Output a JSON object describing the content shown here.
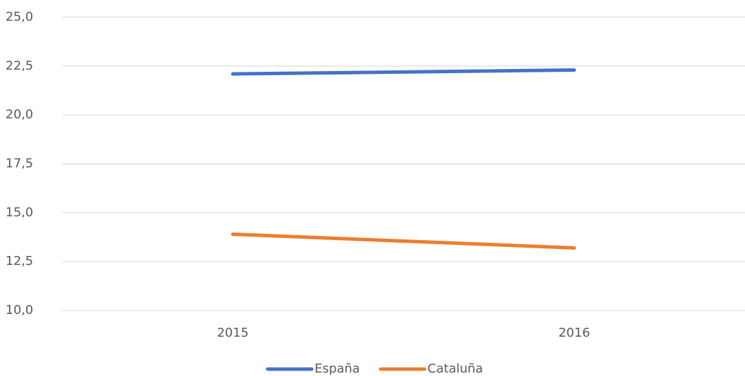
{
  "chart_data": {
    "type": "line",
    "categories": [
      "2015",
      "2016"
    ],
    "series": [
      {
        "name": "España",
        "color": "#4472c4",
        "values": [
          22.1,
          22.3
        ]
      },
      {
        "name": "Cataluña",
        "color": "#ed7d31",
        "values": [
          13.9,
          13.2
        ]
      }
    ],
    "ylim": [
      10,
      25
    ],
    "yticks": [
      {
        "value": 10,
        "label": "10,0"
      },
      {
        "value": 12.5,
        "label": "12,5"
      },
      {
        "value": 15,
        "label": "15,0"
      },
      {
        "value": 17.5,
        "label": "17,5"
      },
      {
        "value": 20,
        "label": "20,0"
      },
      {
        "value": 22.5,
        "label": "22,5"
      },
      {
        "value": 25,
        "label": "25,0"
      }
    ],
    "grid": true,
    "legend": "bottom"
  }
}
